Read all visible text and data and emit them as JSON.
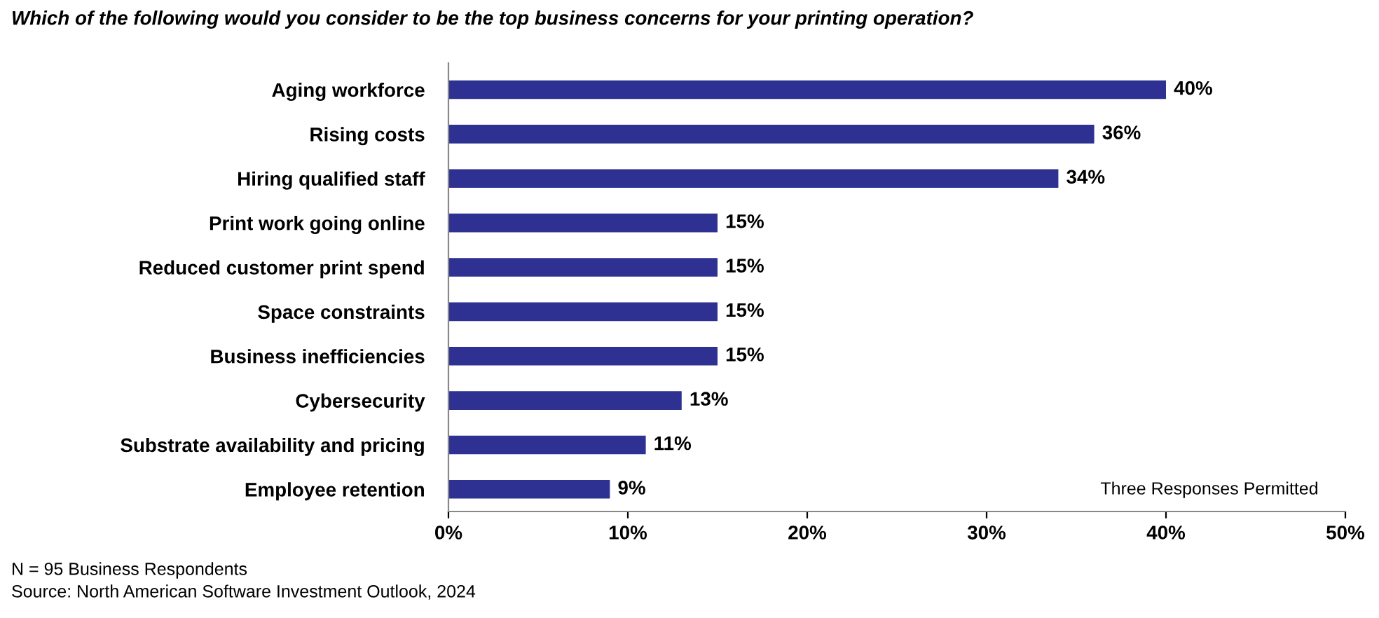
{
  "chart_data": {
    "type": "bar",
    "orientation": "horizontal",
    "title": "Which of the following would you consider to be the top business concerns for your printing operation?",
    "categories": [
      "Aging workforce",
      "Rising costs",
      "Hiring qualified staff",
      "Print work going online",
      "Reduced customer print spend",
      "Space constraints",
      "Business inefficiencies",
      "Cybersecurity",
      "Substrate availability and pricing",
      "Employee retention"
    ],
    "values": [
      40,
      36,
      34,
      15,
      15,
      15,
      15,
      13,
      11,
      9
    ],
    "color": "#2e3192",
    "value_labels": [
      "40%",
      "36%",
      "34%",
      "15%",
      "15%",
      "15%",
      "15%",
      "13%",
      "11%",
      "9%"
    ],
    "xlim": [
      0,
      50
    ],
    "xticks": [
      {
        "value": 0,
        "label": "0%"
      },
      {
        "value": 10,
        "label": "10%"
      },
      {
        "value": 20,
        "label": "20%"
      },
      {
        "value": 30,
        "label": "30%"
      },
      {
        "value": 40,
        "label": "40%"
      },
      {
        "value": 50,
        "label": "50%"
      }
    ],
    "grid": false,
    "annotations": [
      "Three Responses Permitted",
      "N = 95 Business Respondents",
      "Source: North American Software Investment Outlook, 2024"
    ]
  }
}
